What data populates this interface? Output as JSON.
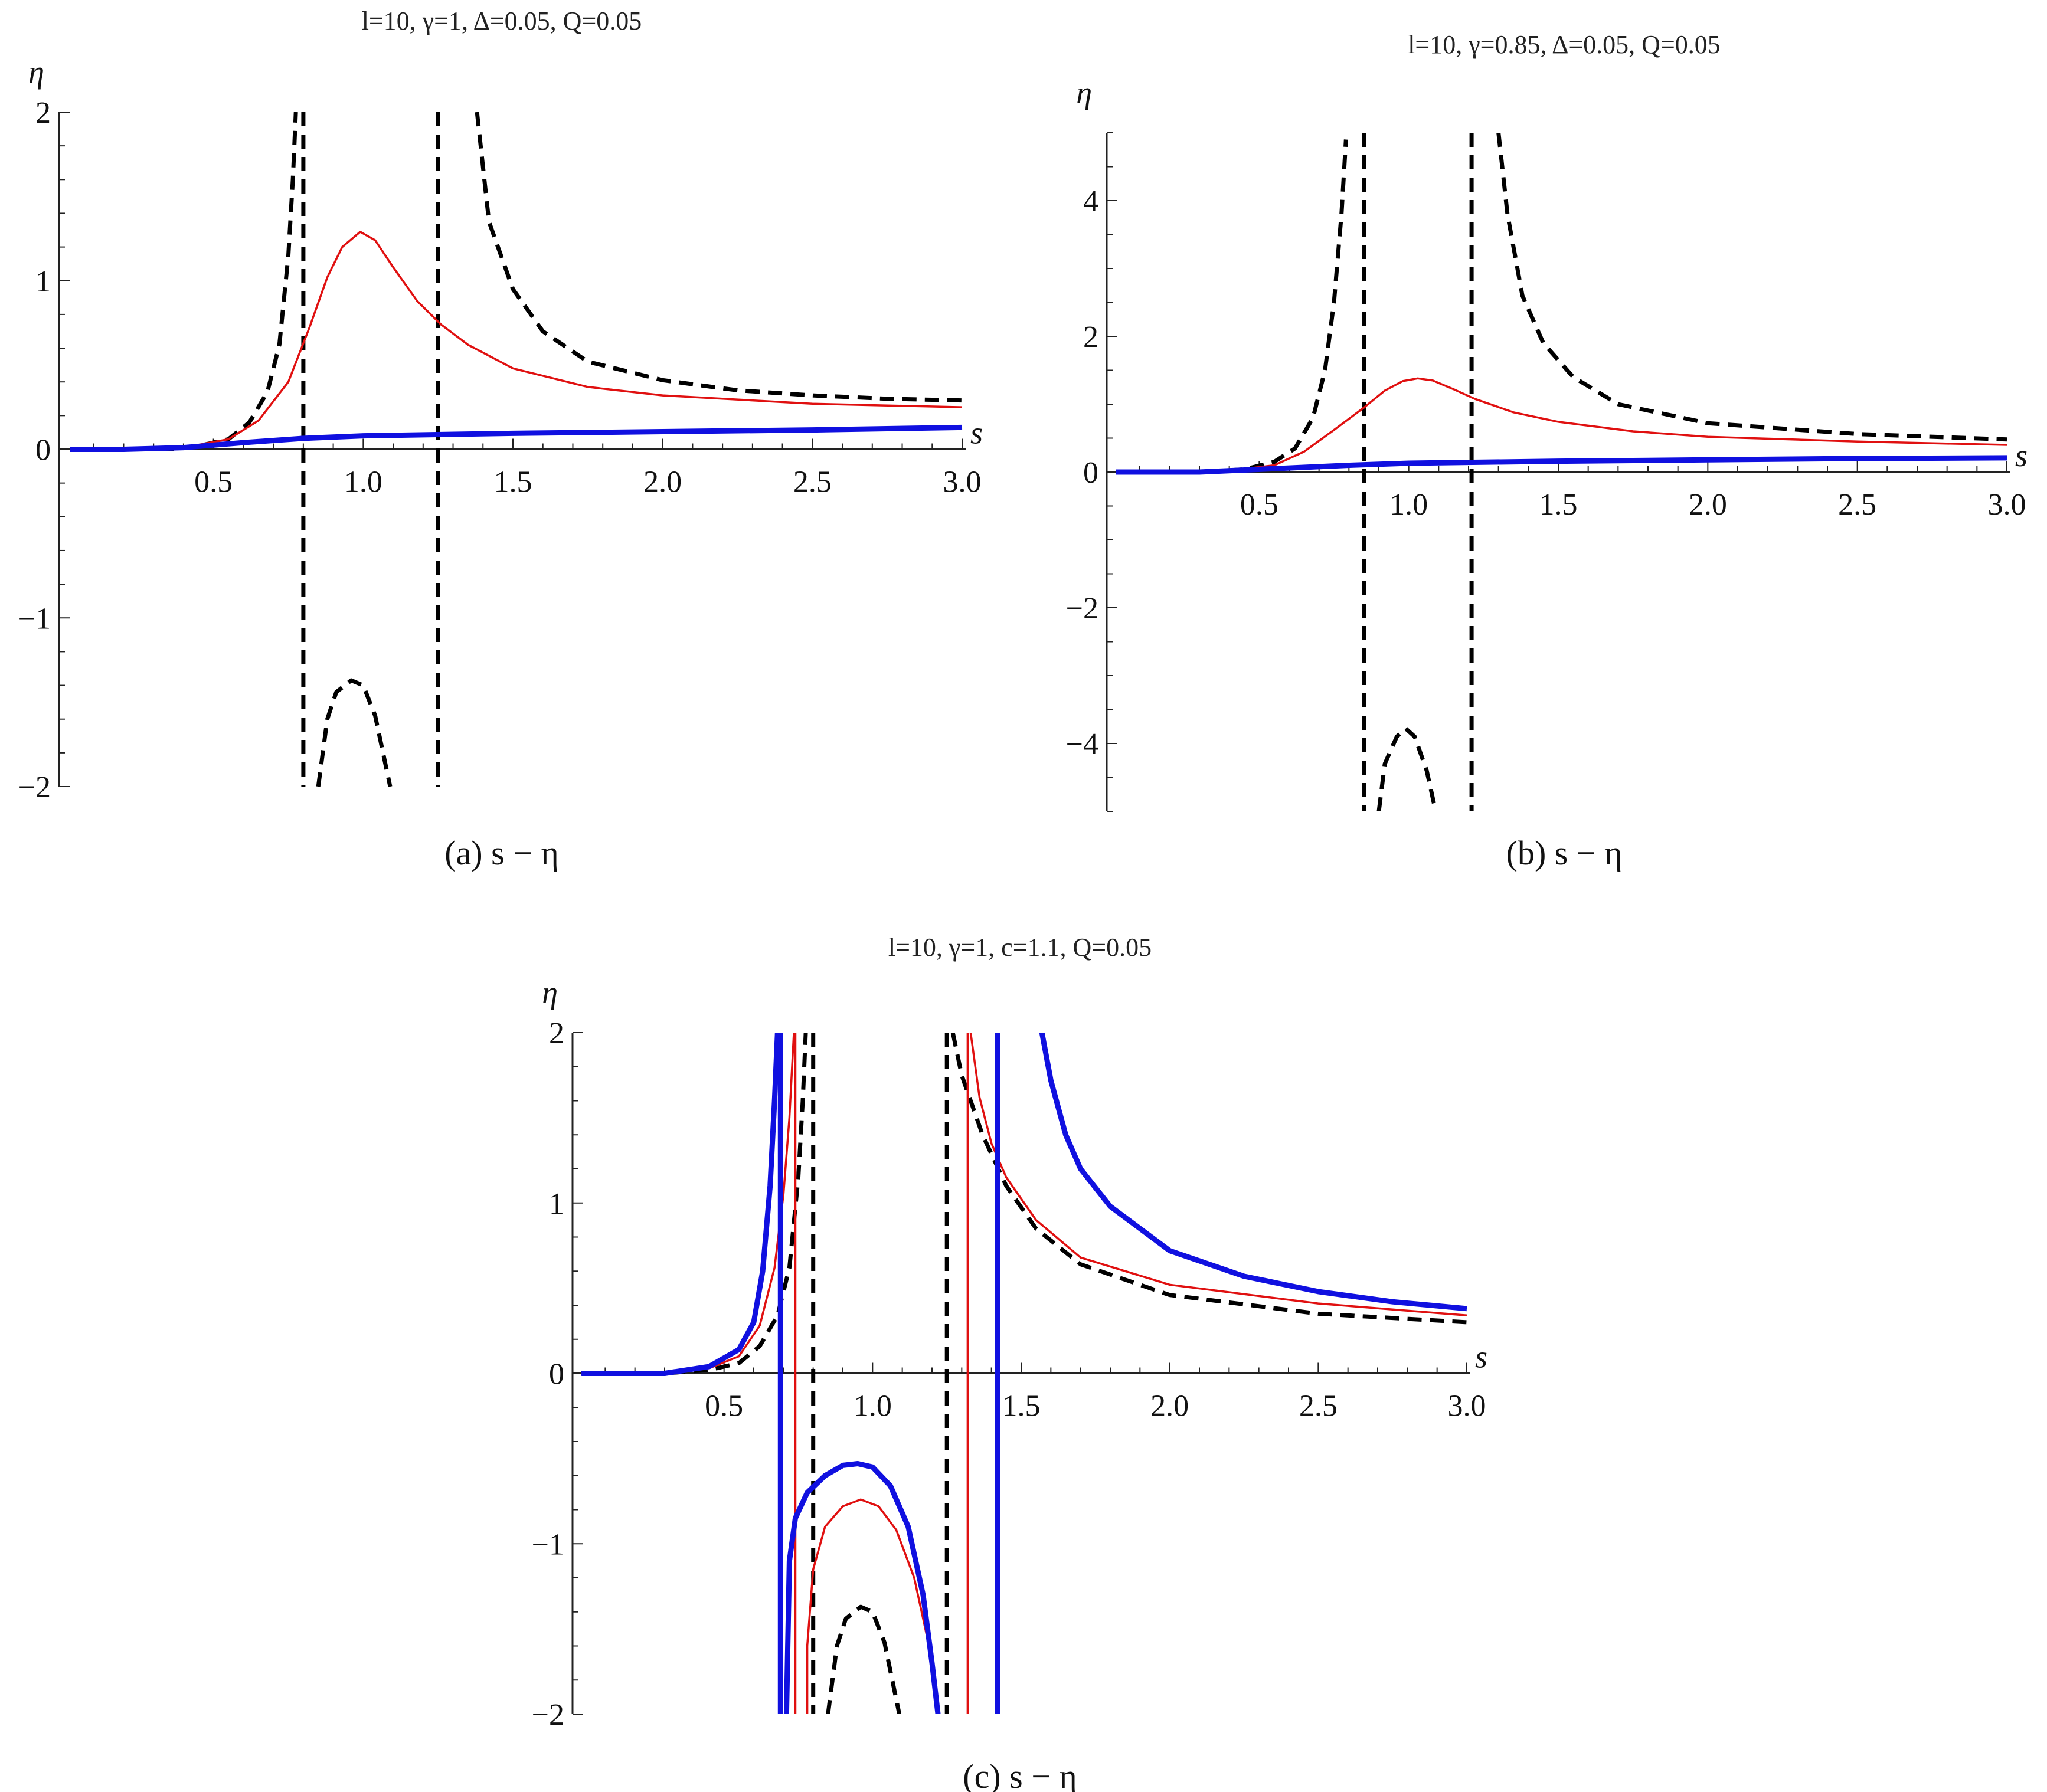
{
  "chart_data": [
    {
      "type": "line",
      "title": "l=10, γ=1, Δ=0.05, Q=0.05",
      "caption": "(a) s − η",
      "xlabel": "s",
      "ylabel": "η",
      "xlim": [
        0,
        3.0
      ],
      "ylim": [
        -2,
        2
      ],
      "xticks": [
        "0.5",
        "1.0",
        "1.5",
        "2.0",
        "2.5",
        "3.0"
      ],
      "yticks": [
        "2",
        "1",
        "0",
        "−1",
        "−2"
      ],
      "grid": false,
      "legend": "none",
      "series": [
        {
          "color": "#000000",
          "style": "dashed",
          "points": [
            [
              0.02,
              0.0
            ],
            [
              0.2,
              0.0
            ],
            [
              0.35,
              0.0
            ],
            [
              0.45,
              0.02
            ],
            [
              0.55,
              0.06
            ],
            [
              0.62,
              0.16
            ],
            [
              0.68,
              0.34
            ],
            [
              0.72,
              0.62
            ],
            [
              0.75,
              1.15
            ],
            [
              0.765,
              1.6
            ],
            [
              0.775,
              2.0
            ]
          ]
        },
        {
          "color": "#000000",
          "style": "dashed",
          "points": [
            [
              0.85,
              -2.0
            ],
            [
              0.88,
              -1.6
            ],
            [
              0.91,
              -1.44
            ],
            [
              0.96,
              -1.37
            ],
            [
              1.0,
              -1.4
            ],
            [
              1.04,
              -1.58
            ],
            [
              1.09,
              -2.0
            ]
          ]
        },
        {
          "color": "#000000",
          "style": "dashed",
          "points": [
            [
              1.38,
              2.0
            ],
            [
              1.42,
              1.35
            ],
            [
              1.5,
              0.95
            ],
            [
              1.6,
              0.7
            ],
            [
              1.75,
              0.52
            ],
            [
              2.0,
              0.41
            ],
            [
              2.25,
              0.35
            ],
            [
              2.5,
              0.32
            ],
            [
              2.75,
              0.3
            ],
            [
              3.0,
              0.29
            ]
          ]
        },
        {
          "color": "#000000",
          "style": "dashed",
          "points": [
            [
              0.8,
              2.0
            ],
            [
              0.8,
              -2.0
            ]
          ]
        },
        {
          "color": "#000000",
          "style": "dashed",
          "points": [
            [
              1.25,
              2.0
            ],
            [
              1.25,
              -2.0
            ]
          ]
        },
        {
          "color": "#e01010",
          "style": "solid",
          "points": [
            [
              0.02,
              0.0
            ],
            [
              0.2,
              0.0
            ],
            [
              0.4,
              0.01
            ],
            [
              0.55,
              0.06
            ],
            [
              0.65,
              0.17
            ],
            [
              0.75,
              0.4
            ],
            [
              0.82,
              0.72
            ],
            [
              0.88,
              1.02
            ],
            [
              0.93,
              1.2
            ],
            [
              0.99,
              1.29
            ],
            [
              1.04,
              1.24
            ],
            [
              1.1,
              1.08
            ],
            [
              1.18,
              0.88
            ],
            [
              1.26,
              0.74
            ],
            [
              1.35,
              0.62
            ],
            [
              1.5,
              0.48
            ],
            [
              1.75,
              0.37
            ],
            [
              2.0,
              0.32
            ],
            [
              2.5,
              0.27
            ],
            [
              3.0,
              0.25
            ]
          ]
        },
        {
          "color": "#1010e0",
          "style": "thick",
          "points": [
            [
              0.02,
              0.0
            ],
            [
              0.2,
              0.0
            ],
            [
              0.4,
              0.01
            ],
            [
              0.6,
              0.04
            ],
            [
              0.8,
              0.065
            ],
            [
              1.0,
              0.08
            ],
            [
              1.5,
              0.095
            ],
            [
              2.0,
              0.105
            ],
            [
              2.5,
              0.115
            ],
            [
              3.0,
              0.13
            ]
          ]
        }
      ]
    },
    {
      "type": "line",
      "title": "l=10, γ=0.85, Δ=0.05, Q=0.05",
      "caption": "(b) s − η",
      "xlabel": "s",
      "ylabel": "η",
      "xlim": [
        0,
        3.0
      ],
      "ylim": [
        -5,
        5
      ],
      "xticks": [
        "0.5",
        "1.0",
        "1.5",
        "2.0",
        "2.5",
        "3.0"
      ],
      "yticks": [
        "4",
        "2",
        "0",
        "−2",
        "−4"
      ],
      "grid": false,
      "legend": "none",
      "series": [
        {
          "color": "#000000",
          "style": "dashed",
          "points": [
            [
              0.02,
              0.0
            ],
            [
              0.3,
              0.0
            ],
            [
              0.45,
              0.04
            ],
            [
              0.55,
              0.15
            ],
            [
              0.62,
              0.35
            ],
            [
              0.68,
              0.8
            ],
            [
              0.72,
              1.5
            ],
            [
              0.75,
              2.5
            ],
            [
              0.775,
              3.8
            ],
            [
              0.79,
              4.9
            ]
          ]
        },
        {
          "color": "#000000",
          "style": "dashed",
          "points": [
            [
              0.9,
              -5.0
            ],
            [
              0.92,
              -4.3
            ],
            [
              0.96,
              -3.9
            ],
            [
              0.99,
              -3.78
            ],
            [
              1.02,
              -3.9
            ],
            [
              1.06,
              -4.4
            ],
            [
              1.09,
              -5.0
            ]
          ]
        },
        {
          "color": "#000000",
          "style": "dashed",
          "points": [
            [
              1.3,
              5.0
            ],
            [
              1.33,
              3.8
            ],
            [
              1.38,
              2.6
            ],
            [
              1.45,
              1.9
            ],
            [
              1.55,
              1.4
            ],
            [
              1.7,
              1.0
            ],
            [
              2.0,
              0.72
            ],
            [
              2.5,
              0.56
            ],
            [
              3.0,
              0.48
            ]
          ]
        },
        {
          "color": "#000000",
          "style": "dashed",
          "points": [
            [
              0.85,
              5.0
            ],
            [
              0.85,
              -5.0
            ]
          ]
        },
        {
          "color": "#000000",
          "style": "dashed",
          "points": [
            [
              1.21,
              5.0
            ],
            [
              1.21,
              -5.0
            ]
          ]
        },
        {
          "color": "#e01010",
          "style": "solid",
          "points": [
            [
              0.02,
              0.0
            ],
            [
              0.4,
              0.02
            ],
            [
              0.55,
              0.1
            ],
            [
              0.65,
              0.3
            ],
            [
              0.75,
              0.62
            ],
            [
              0.85,
              0.95
            ],
            [
              0.92,
              1.2
            ],
            [
              0.98,
              1.34
            ],
            [
              1.03,
              1.38
            ],
            [
              1.08,
              1.35
            ],
            [
              1.15,
              1.22
            ],
            [
              1.22,
              1.08
            ],
            [
              1.35,
              0.88
            ],
            [
              1.5,
              0.74
            ],
            [
              1.75,
              0.6
            ],
            [
              2.0,
              0.52
            ],
            [
              2.5,
              0.45
            ],
            [
              3.0,
              0.4
            ]
          ]
        },
        {
          "color": "#1010e0",
          "style": "thick",
          "points": [
            [
              0.02,
              0.0
            ],
            [
              0.3,
              0.0
            ],
            [
              0.6,
              0.06
            ],
            [
              0.8,
              0.1
            ],
            [
              1.0,
              0.13
            ],
            [
              1.5,
              0.16
            ],
            [
              2.0,
              0.18
            ],
            [
              2.5,
              0.2
            ],
            [
              3.0,
              0.21
            ]
          ]
        }
      ]
    },
    {
      "type": "line",
      "title": "l=10, γ=1, c=1.1, Q=0.05",
      "caption": "(c) s − η",
      "xlabel": "s",
      "ylabel": "η",
      "xlim": [
        0,
        3.0
      ],
      "ylim": [
        -2,
        2
      ],
      "xticks": [
        "0.5",
        "1.0",
        "1.5",
        "2.0",
        "2.5",
        "3.0"
      ],
      "yticks": [
        "2",
        "1",
        "0",
        "−1",
        "−2"
      ],
      "grid": false,
      "legend": "none",
      "series": [
        {
          "color": "#000000",
          "style": "dashed",
          "points": [
            [
              0.02,
              0.0
            ],
            [
              0.3,
              0.0
            ],
            [
              0.45,
              0.02
            ],
            [
              0.55,
              0.06
            ],
            [
              0.62,
              0.16
            ],
            [
              0.68,
              0.34
            ],
            [
              0.72,
              0.62
            ],
            [
              0.75,
              1.15
            ],
            [
              0.765,
              1.6
            ],
            [
              0.775,
              2.0
            ]
          ]
        },
        {
          "color": "#000000",
          "style": "dashed",
          "points": [
            [
              0.85,
              -2.0
            ],
            [
              0.88,
              -1.6
            ],
            [
              0.91,
              -1.44
            ],
            [
              0.96,
              -1.37
            ],
            [
              1.0,
              -1.4
            ],
            [
              1.04,
              -1.58
            ],
            [
              1.09,
              -2.0
            ]
          ]
        },
        {
          "color": "#000000",
          "style": "dashed",
          "points": [
            [
              1.27,
              2.0
            ],
            [
              1.3,
              1.75
            ],
            [
              1.37,
              1.4
            ],
            [
              1.45,
              1.1
            ],
            [
              1.55,
              0.85
            ],
            [
              1.7,
              0.64
            ],
            [
              2.0,
              0.46
            ],
            [
              2.5,
              0.35
            ],
            [
              3.0,
              0.3
            ]
          ]
        },
        {
          "color": "#000000",
          "style": "dashed",
          "points": [
            [
              0.8,
              2.0
            ],
            [
              0.8,
              -2.0
            ]
          ]
        },
        {
          "color": "#000000",
          "style": "dashed",
          "points": [
            [
              1.25,
              2.0
            ],
            [
              1.25,
              -2.0
            ]
          ]
        },
        {
          "color": "#e01010",
          "style": "solid",
          "points": [
            [
              0.02,
              0.0
            ],
            [
              0.3,
              0.0
            ],
            [
              0.45,
              0.03
            ],
            [
              0.55,
              0.1
            ],
            [
              0.62,
              0.28
            ],
            [
              0.67,
              0.62
            ],
            [
              0.7,
              1.05
            ],
            [
              0.72,
              1.5
            ],
            [
              0.735,
              2.0
            ]
          ]
        },
        {
          "color": "#e01010",
          "style": "solid",
          "points": [
            [
              0.78,
              -2.0
            ],
            [
              0.78,
              -1.6
            ],
            [
              0.8,
              -1.15
            ],
            [
              0.84,
              -0.9
            ],
            [
              0.9,
              -0.78
            ],
            [
              0.96,
              -0.74
            ],
            [
              1.02,
              -0.78
            ],
            [
              1.08,
              -0.92
            ],
            [
              1.14,
              -1.2
            ],
            [
              1.19,
              -1.6
            ],
            [
              1.22,
              -2.0
            ]
          ]
        },
        {
          "color": "#e01010",
          "style": "solid",
          "points": [
            [
              1.33,
              2.0
            ],
            [
              1.36,
              1.62
            ],
            [
              1.4,
              1.35
            ],
            [
              1.45,
              1.15
            ],
            [
              1.55,
              0.9
            ],
            [
              1.7,
              0.68
            ],
            [
              2.0,
              0.52
            ],
            [
              2.5,
              0.41
            ],
            [
              3.0,
              0.34
            ]
          ]
        },
        {
          "color": "#e01010",
          "style": "solid",
          "points": [
            [
              0.74,
              2.0
            ],
            [
              0.74,
              -2.0
            ]
          ]
        },
        {
          "color": "#e01010",
          "style": "solid",
          "points": [
            [
              1.32,
              2.0
            ],
            [
              1.32,
              -2.0
            ]
          ]
        },
        {
          "color": "#1010e0",
          "style": "thick",
          "points": [
            [
              0.02,
              0.0
            ],
            [
              0.3,
              0.0
            ],
            [
              0.45,
              0.04
            ],
            [
              0.55,
              0.14
            ],
            [
              0.6,
              0.3
            ],
            [
              0.63,
              0.6
            ],
            [
              0.655,
              1.1
            ],
            [
              0.67,
              1.6
            ],
            [
              0.68,
              2.0
            ]
          ]
        },
        {
          "color": "#1010e0",
          "style": "thick",
          "points": [
            [
              0.71,
              -2.0
            ],
            [
              0.715,
              -1.55
            ],
            [
              0.72,
              -1.1
            ],
            [
              0.74,
              -0.85
            ],
            [
              0.78,
              -0.7
            ],
            [
              0.84,
              -0.6
            ],
            [
              0.9,
              -0.54
            ],
            [
              0.95,
              -0.53
            ],
            [
              1.0,
              -0.55
            ],
            [
              1.06,
              -0.66
            ],
            [
              1.12,
              -0.9
            ],
            [
              1.17,
              -1.3
            ],
            [
              1.2,
              -1.7
            ],
            [
              1.22,
              -2.0
            ]
          ]
        },
        {
          "color": "#1010e0",
          "style": "thick",
          "points": [
            [
              1.57,
              2.0
            ],
            [
              1.6,
              1.72
            ],
            [
              1.65,
              1.4
            ],
            [
              1.7,
              1.2
            ],
            [
              1.8,
              0.98
            ],
            [
              2.0,
              0.72
            ],
            [
              2.25,
              0.57
            ],
            [
              2.5,
              0.48
            ],
            [
              2.75,
              0.42
            ],
            [
              3.0,
              0.38
            ]
          ]
        },
        {
          "color": "#1010e0",
          "style": "thick",
          "points": [
            [
              0.69,
              2.0
            ],
            [
              0.69,
              -2.0
            ]
          ]
        },
        {
          "color": "#1010e0",
          "style": "thick",
          "points": [
            [
              1.42,
              2.0
            ],
            [
              1.42,
              -2.0
            ]
          ]
        }
      ]
    }
  ]
}
